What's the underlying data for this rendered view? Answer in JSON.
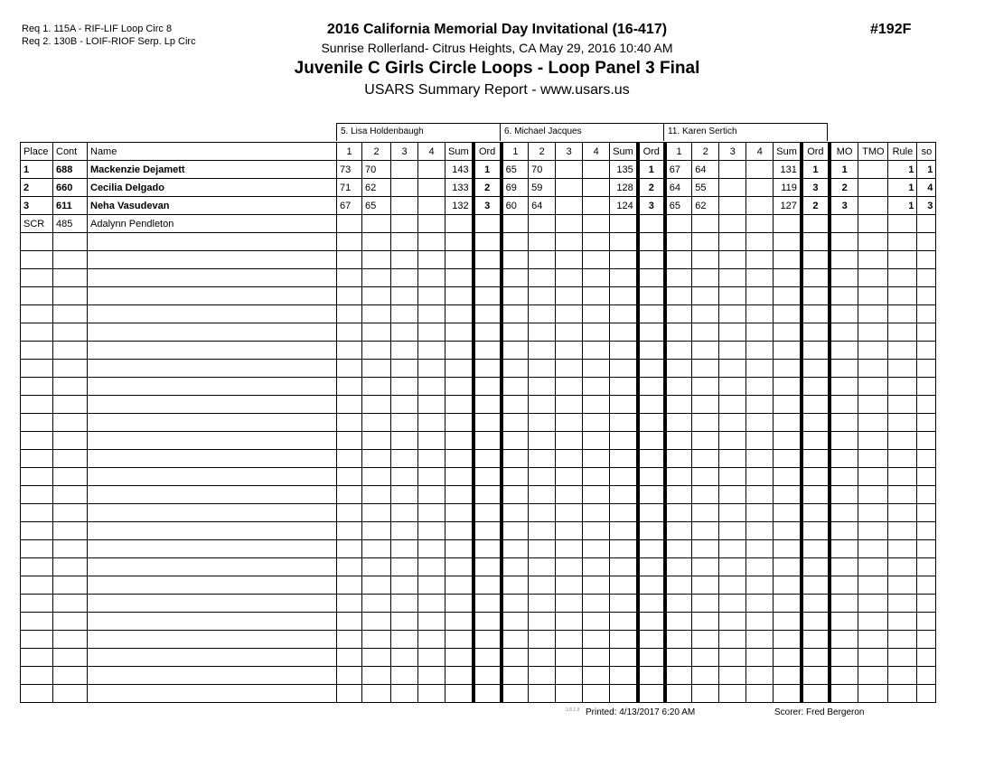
{
  "requirements": [
    "Req  1.  115A - RIF-LIF Loop Circ 8",
    "Req  2.  130B - LOIF-RIOF Serp. Lp Circ"
  ],
  "event_title": "2016 California Memorial Day Invitational (16-417)",
  "event_number": "#192F",
  "venue_line": "Sunrise Rollerland- Citrus Heights, CA  May 29, 2016  10:40 AM",
  "division_title": "Juvenile C Girls Circle Loops - Loop Panel 3 Final",
  "report_title": "USARS Summary Report - www.usars.us",
  "judges": [
    "5.  Lisa Holdenbaugh",
    "6.  Michael  Jacques",
    "11.  Karen Sertich"
  ],
  "columns": {
    "place": "Place",
    "cont": "Cont",
    "name": "Name",
    "judge_cols": [
      "1",
      "2",
      "3",
      "4",
      "Sum",
      "Ord"
    ],
    "mo": "MO",
    "tmo": "TMO",
    "rule": "Rule",
    "so": "so"
  },
  "skaters": [
    {
      "place": "1",
      "cont": "688",
      "name": "Mackenzie Dejamett",
      "bold": true,
      "scores": [
        [
          "73",
          "70",
          "",
          "",
          "143",
          "1"
        ],
        [
          "65",
          "70",
          "",
          "",
          "135",
          "1"
        ],
        [
          "67",
          "64",
          "",
          "",
          "131",
          "1"
        ]
      ],
      "mo": "1",
      "tmo": "",
      "rule": "1",
      "so": "1"
    },
    {
      "place": "2",
      "cont": "660",
      "name": "Cecilia Delgado",
      "bold": true,
      "scores": [
        [
          "71",
          "62",
          "",
          "",
          "133",
          "2"
        ],
        [
          "69",
          "59",
          "",
          "",
          "128",
          "2"
        ],
        [
          "64",
          "55",
          "",
          "",
          "119",
          "3"
        ]
      ],
      "mo": "2",
      "tmo": "",
      "rule": "1",
      "so": "4"
    },
    {
      "place": "3",
      "cont": "611",
      "name": "Neha Vasudevan",
      "bold": true,
      "scores": [
        [
          "67",
          "65",
          "",
          "",
          "132",
          "3"
        ],
        [
          "60",
          "64",
          "",
          "",
          "124",
          "3"
        ],
        [
          "65",
          "62",
          "",
          "",
          "127",
          "2"
        ]
      ],
      "mo": "3",
      "tmo": "",
      "rule": "1",
      "so": "3"
    },
    {
      "place": "SCR",
      "cont": "485",
      "name": "Adalynn Pendleton",
      "bold": false,
      "scores": [
        [
          "",
          "",
          "",
          "",
          "",
          ""
        ],
        [
          "",
          "",
          "",
          "",
          "",
          ""
        ],
        [
          "",
          "",
          "",
          "",
          "",
          ""
        ]
      ],
      "mo": "",
      "tmo": "",
      "rule": "",
      "so": ""
    }
  ],
  "footer": {
    "version": "3.8.1.8",
    "printed": "Printed:  4/13/2017  6:20 AM",
    "scorer": "Scorer:    Fred Bergeron"
  }
}
